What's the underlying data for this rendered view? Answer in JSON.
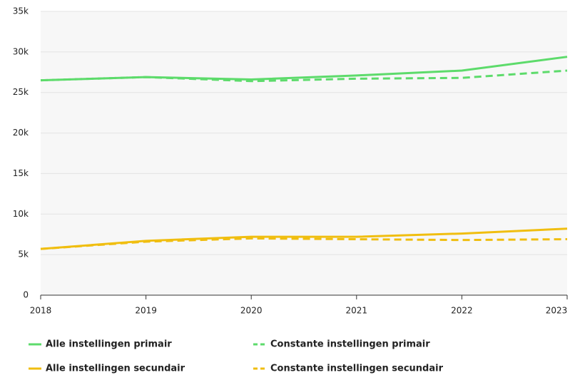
{
  "chart_data": {
    "type": "line",
    "x": [
      2018,
      2019,
      2020,
      2021,
      2022,
      2023
    ],
    "xlim": [
      2018,
      2023
    ],
    "xticks": [
      2018,
      2019,
      2020,
      2021,
      2022,
      2023
    ],
    "ylim": [
      0,
      35000
    ],
    "yticks": [
      0,
      {
        "value": 5000,
        "label": "5k"
      },
      {
        "value": 10000,
        "label": "10k"
      },
      {
        "value": 15000,
        "label": "15k"
      },
      {
        "value": 20000,
        "label": "20k"
      },
      {
        "value": 25000,
        "label": "25k"
      },
      {
        "value": 30000,
        "label": "30k"
      },
      {
        "value": 35000,
        "label": "35k"
      }
    ],
    "grid": true,
    "legend": "bottom",
    "series": [
      {
        "name": "Alle instellingen primair",
        "color": "#5ddb6b",
        "dash": false,
        "values": [
          26500,
          26900,
          26600,
          27100,
          27700,
          29400
        ]
      },
      {
        "name": "Constante instellingen primair",
        "color": "#5ddb6b",
        "dash": true,
        "values": [
          26500,
          26900,
          26400,
          26700,
          26800,
          27700
        ]
      },
      {
        "name": "Alle instellingen secundair",
        "color": "#f0be10",
        "dash": false,
        "values": [
          5700,
          6700,
          7200,
          7200,
          7600,
          8200
        ]
      },
      {
        "name": "Constante instellingen secundair",
        "color": "#f0be10",
        "dash": true,
        "values": [
          5700,
          6600,
          7000,
          6900,
          6800,
          6900
        ]
      }
    ]
  }
}
